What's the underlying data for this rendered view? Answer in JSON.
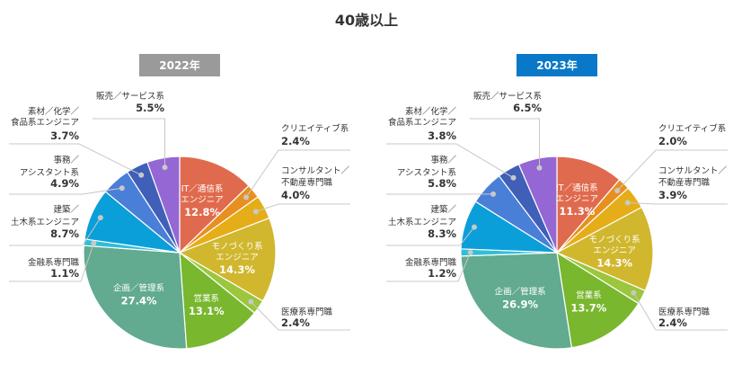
{
  "title": "40歳以上",
  "chart_data": [
    {
      "type": "pie",
      "title": "2022年",
      "badge_color": "#9a9a9a",
      "slices": [
        {
          "name": [
            "IT／通信系",
            "エンジニア"
          ],
          "value": 12.8,
          "label": "12.8%",
          "color": "#e06a4e"
        },
        {
          "name": [
            "クリエイティブ系"
          ],
          "value": 2.4,
          "label": "2.4%",
          "color": "#e8901f"
        },
        {
          "name": [
            "コンサルタント／",
            "不動産専門職"
          ],
          "value": 4.0,
          "label": "4.0%",
          "color": "#e5ad17"
        },
        {
          "name": [
            "モノづくり系",
            "エンジニア"
          ],
          "value": 14.3,
          "label": "14.3%",
          "color": "#d1b72e"
        },
        {
          "name": [
            "医療系専門職"
          ],
          "value": 2.4,
          "label": "2.4%",
          "color": "#9bc63d"
        },
        {
          "name": [
            "営業系"
          ],
          "value": 13.1,
          "label": "13.1%",
          "color": "#78b72e"
        },
        {
          "name": [
            "企画／管理系"
          ],
          "value": 27.4,
          "label": "27.4%",
          "color": "#62aa90"
        },
        {
          "name": [
            "金融系専門職"
          ],
          "value": 1.1,
          "label": "1.1%",
          "color": "#2ebfd8"
        },
        {
          "name": [
            "建築／",
            "土木系エンジニア"
          ],
          "value": 8.7,
          "label": "8.7%",
          "color": "#0b9fd9"
        },
        {
          "name": [
            "事務／",
            "アシスタント系"
          ],
          "value": 4.9,
          "label": "4.9%",
          "color": "#4a7fd8"
        },
        {
          "name": [
            "素材／化学／",
            "食品系エンジニア"
          ],
          "value": 3.7,
          "label": "3.7%",
          "color": "#3f5fb8"
        },
        {
          "name": [
            "販売／サービス系"
          ],
          "value": 5.5,
          "label": "5.5%",
          "color": "#9467d4"
        }
      ]
    },
    {
      "type": "pie",
      "title": "2023年",
      "badge_color": "#0a78c8",
      "slices": [
        {
          "name": [
            "IT／通信系",
            "エンジニア"
          ],
          "value": 11.3,
          "label": "11.3%",
          "color": "#e06a4e"
        },
        {
          "name": [
            "クリエイティブ系"
          ],
          "value": 2.0,
          "label": "2.0%",
          "color": "#e8901f"
        },
        {
          "name": [
            "コンサルタント／",
            "不動産専門職"
          ],
          "value": 3.9,
          "label": "3.9%",
          "color": "#e5ad17"
        },
        {
          "name": [
            "モノづくり系",
            "エンジニア"
          ],
          "value": 14.3,
          "label": "14.3%",
          "color": "#d1b72e"
        },
        {
          "name": [
            "医療系専門職"
          ],
          "value": 2.4,
          "label": "2.4%",
          "color": "#9bc63d"
        },
        {
          "name": [
            "営業系"
          ],
          "value": 13.7,
          "label": "13.7%",
          "color": "#78b72e"
        },
        {
          "name": [
            "企画／管理系"
          ],
          "value": 26.9,
          "label": "26.9%",
          "color": "#62aa90"
        },
        {
          "name": [
            "金融系専門職"
          ],
          "value": 1.2,
          "label": "1.2%",
          "color": "#2ebfd8"
        },
        {
          "name": [
            "建築／",
            "土木系エンジニア"
          ],
          "value": 8.3,
          "label": "8.3%",
          "color": "#0b9fd9"
        },
        {
          "name": [
            "事務／",
            "アシスタント系"
          ],
          "value": 5.8,
          "label": "5.8%",
          "color": "#4a7fd8"
        },
        {
          "name": [
            "素材／化学／",
            "食品系エンジニア"
          ],
          "value": 3.8,
          "label": "3.8%",
          "color": "#3f5fb8"
        },
        {
          "name": [
            "販売／サービス系"
          ],
          "value": 6.5,
          "label": "6.5%",
          "color": "#9467d4"
        }
      ]
    }
  ]
}
